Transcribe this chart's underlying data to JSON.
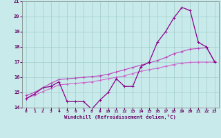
{
  "title": "",
  "xlabel": "Windchill (Refroidissement éolien,°C)",
  "x_values": [
    0,
    1,
    2,
    3,
    4,
    5,
    6,
    7,
    8,
    9,
    10,
    11,
    12,
    13,
    14,
    15,
    16,
    17,
    18,
    19,
    20,
    21,
    22,
    23
  ],
  "line1": [
    14.6,
    14.9,
    15.3,
    15.4,
    15.7,
    14.4,
    14.4,
    14.4,
    13.9,
    14.5,
    15.0,
    15.9,
    15.4,
    15.4,
    16.7,
    17.0,
    18.3,
    19.0,
    19.9,
    20.6,
    20.4,
    18.3,
    18.0,
    17.0
  ],
  "line2": [
    14.8,
    15.0,
    15.3,
    15.6,
    15.85,
    15.9,
    15.95,
    16.0,
    16.05,
    16.1,
    16.2,
    16.35,
    16.5,
    16.65,
    16.8,
    16.95,
    17.1,
    17.3,
    17.55,
    17.7,
    17.85,
    17.9,
    17.95,
    17.05
  ],
  "line3": [
    14.6,
    14.82,
    15.05,
    15.27,
    15.5,
    15.55,
    15.6,
    15.65,
    15.7,
    15.8,
    15.9,
    16.0,
    16.1,
    16.25,
    16.4,
    16.5,
    16.6,
    16.72,
    16.84,
    16.93,
    16.98,
    17.0,
    17.0,
    17.0
  ],
  "ylim": [
    14,
    21
  ],
  "xlim": [
    -0.5,
    23.5
  ],
  "yticks": [
    14,
    15,
    16,
    17,
    18,
    19,
    20,
    21
  ],
  "xticks": [
    0,
    1,
    2,
    3,
    4,
    5,
    6,
    7,
    8,
    9,
    10,
    11,
    12,
    13,
    14,
    15,
    16,
    17,
    18,
    19,
    20,
    21,
    22,
    23
  ],
  "line_color1": "#880088",
  "line_color2": "#bb44bb",
  "line_color3": "#cc66cc",
  "bg_color": "#c8eaea",
  "grid_color": "#a0cccc",
  "tick_color": "#660066",
  "spine_color": "#777777"
}
